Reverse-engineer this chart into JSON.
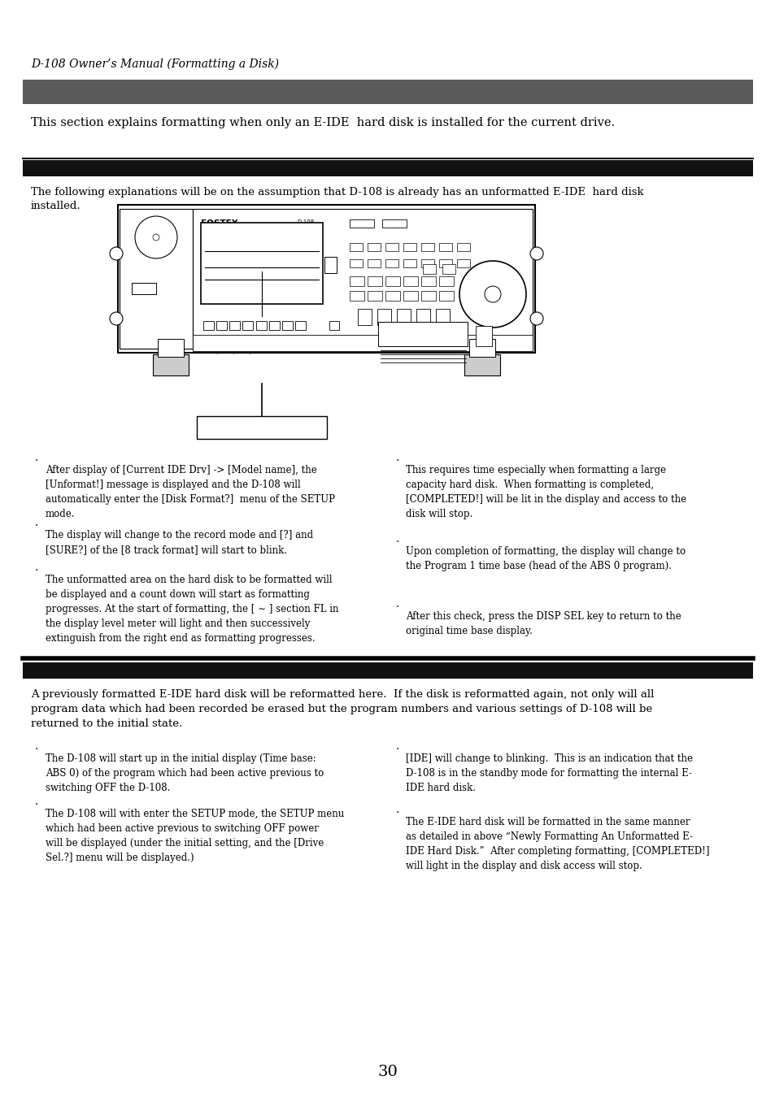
{
  "page_title": "D-108 Owner’s Manual (Formatting a Disk)",
  "section1_bar_color": "#5a5a5a",
  "section1_text": "This section explains formatting when only an E-IDE  hard disk is installed for the current drive.",
  "section2_line_color": "#000000",
  "section2_bar_color": "#111111",
  "section2_intro_line1": "The following explanations will be on the assumption that D-108 is already has an unformatted E-IDE  hard disk",
  "section2_intro_line2": "installed.",
  "section2_bullets_left": [
    "After display of [Current IDE Drv] -> [Model name], the\n[Unformat!] message is displayed and the D-108 will\nautomatically enter the [Disk Format?]  menu of the SETUP\nmode.",
    "The display will change to the record mode and [?] and\n[SURE?] of the [8 track format] will start to blink.",
    "The unformatted area on the hard disk to be formatted will\nbe displayed and a count down will start as formatting\nprogresses. At the start of formatting, the [ ∼ ] section FL in\nthe display level meter will light and then successively\nextinguish from the right end as formatting progresses."
  ],
  "section2_bullets_right": [
    "This requires time especially when formatting a large\ncapacity hard disk.  When formatting is completed,\n[COMPLETED!] will be lit in the display and access to the\ndisk will stop.",
    "Upon completion of formatting, the display will change to\nthe Program 1 time base (head of the ABS 0 program).",
    "After this check, press the DISP SEL key to return to the\noriginal time base display."
  ],
  "section3_bar_color": "#111111",
  "section3_intro": "A previously formatted E-IDE hard disk will be reformatted here.  If the disk is reformatted again, not only will all\nprogram data which had been recorded be erased but the program numbers and various settings of D-108 will be\nreturned to the initial state.",
  "section3_bullets_left": [
    "The D-108 will start up in the initial display (Time base:\nABS 0) of the program which had been active previous to\nswitching OFF the D-108.",
    "The D-108 will with enter the SETUP mode, the SETUP menu\nwhich had been active previous to switching OFF power\nwill be displayed (under the initial setting, and the [Drive\nSel.?] menu will be displayed.)"
  ],
  "section3_bullets_right": [
    "[IDE] will change to blinking.  This is an indication that the\nD-108 is in the standby mode for formatting the internal E-\nIDE hard disk.",
    "The E-IDE hard disk will be formatted in the same manner\nas detailed in above “Newly Formatting An Unformatted E-\nIDE Hard Disk.”  After completing formatting, [COMPLETED!]\nwill light in the display and disk access will stop."
  ],
  "page_number": "30",
  "bg_color": "#ffffff",
  "text_color": "#000000",
  "dot_char": "·"
}
